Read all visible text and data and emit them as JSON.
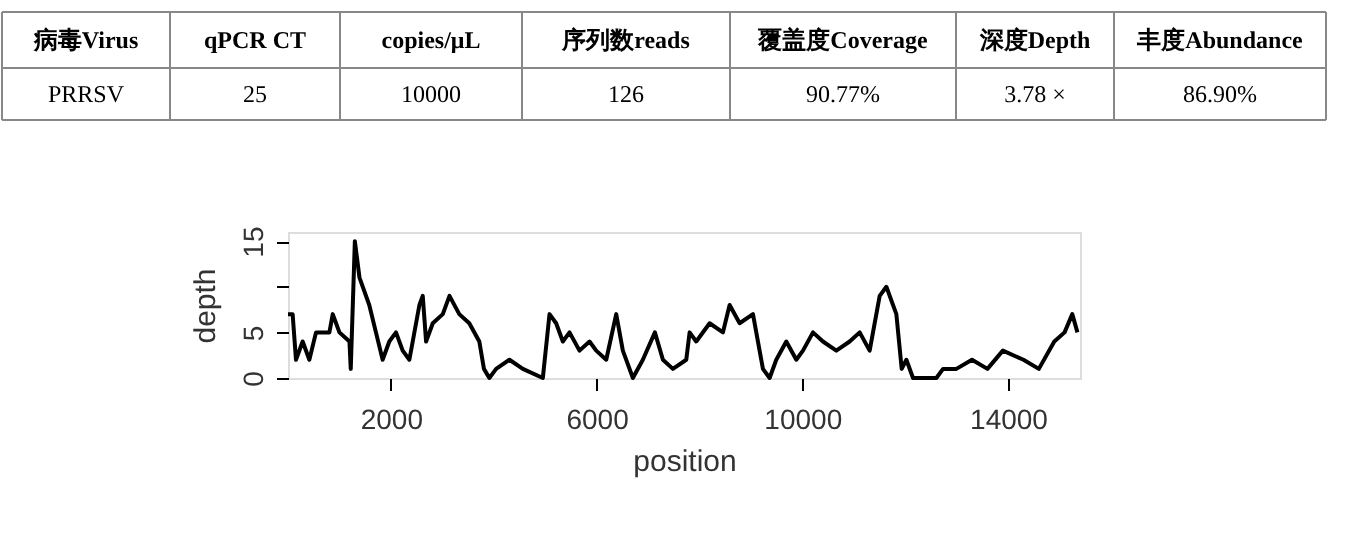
{
  "chart_data": [
    {
      "type": "other",
      "annotations": [
        "病毒Virus",
        "qPCR CT",
        "copies/μL",
        "序列数reads",
        "覆盖度Coverage",
        "深度Depth",
        "丰度Abundance",
        "PRRSV",
        "25",
        "10000",
        "126",
        "90.77%",
        "3.78 ×",
        "86.90%"
      ]
    },
    {
      "type": "line",
      "xlabel": "position",
      "ylabel": "depth",
      "marker": "none",
      "line_style": "solid",
      "grid": false,
      "xlim": [
        0,
        15400
      ],
      "ylim": [
        0,
        16
      ],
      "xticks": [
        2000,
        6000,
        10000,
        14000
      ],
      "yticks": [
        0,
        5,
        {
          "value": 10,
          "label": null
        },
        15
      ],
      "x": [
        0,
        90,
        155,
        285,
        415,
        545,
        805,
        870,
        1000,
        1195,
        1220,
        1300,
        1390,
        1580,
        1710,
        1840,
        1970,
        2100,
        2230,
        2360,
        2555,
        2620,
        2685,
        2815,
        3010,
        3140,
        3330,
        3525,
        3720,
        3810,
        3915,
        4047,
        4306,
        4566,
        4955,
        5085,
        5214,
        5344,
        5474,
        5668,
        5863,
        5993,
        6188,
        6382,
        6511,
        6706,
        6900,
        7134,
        7290,
        7484,
        7744,
        7809,
        7938,
        8198,
        8457,
        8587,
        8782,
        9041,
        9170,
        9235,
        9365,
        9494,
        9689,
        9884,
        10013,
        10208,
        10402,
        10662,
        10921,
        11116,
        11310,
        11505,
        11635,
        11829,
        11933,
        12024,
        12153,
        12607,
        12737,
        12996,
        13300,
        13600,
        13900,
        14300,
        14600,
        14900,
        15100,
        15250,
        15350
      ],
      "series": [
        {
          "color": "#000000",
          "values": [
            7,
            7,
            2,
            4,
            2,
            5,
            5,
            7,
            5,
            4,
            1,
            15,
            11,
            8,
            5,
            2,
            4,
            5,
            3,
            2,
            8,
            9,
            4,
            6,
            7,
            9,
            7,
            6,
            4,
            1,
            0,
            1,
            2,
            1,
            0,
            7,
            6,
            4,
            5,
            3,
            4,
            3,
            2,
            7,
            3,
            0,
            2,
            5,
            2,
            1,
            2,
            5,
            4,
            6,
            5,
            8,
            6,
            7,
            3,
            1,
            0,
            2,
            4,
            2,
            3,
            5,
            4,
            3,
            4,
            5,
            3,
            9,
            10,
            7,
            1,
            2,
            0,
            0,
            1,
            1,
            2,
            1,
            3,
            2,
            1,
            4,
            5,
            7,
            5
          ]
        }
      ]
    }
  ]
}
